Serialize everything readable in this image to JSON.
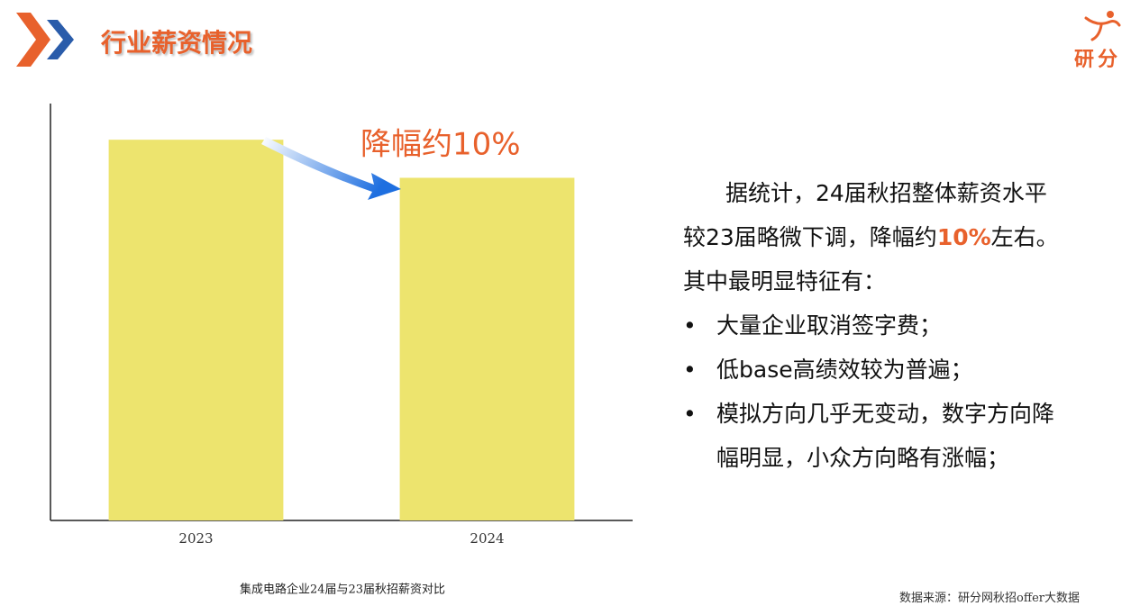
{
  "header": {
    "title": "行业薪资情况",
    "logo": "研分"
  },
  "chart_data": {
    "type": "bar",
    "categories": [
      "2023",
      "2024"
    ],
    "values": [
      100,
      90
    ],
    "color": "#ede46e",
    "ylim": [
      0,
      109.5
    ],
    "annotation": "降幅约10%",
    "caption": "集成电路企业24届与23届秋招薪资对比"
  },
  "summary": {
    "lines": [
      [
        "据统计，24届秋招整体薪资水平"
      ],
      [
        "较23届略微下调，降幅约",
        "10%",
        "左右。"
      ],
      [
        "其中最明显特征有："
      ]
    ],
    "bullets": [
      [
        "大量企业取消签字费；"
      ],
      [
        "低base高绩效较为普遍；"
      ],
      [
        "模拟方向几乎无变动，数字方向降",
        "幅明显，小众方向略有涨幅；"
      ]
    ]
  },
  "source": "数据来源：研分网秋招offer大数据"
}
